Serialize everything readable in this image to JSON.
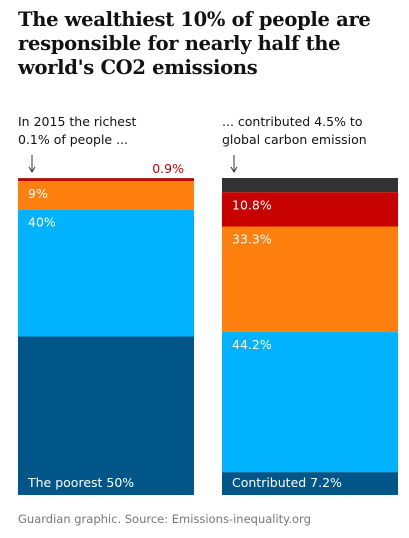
{
  "chart_data": {
    "type": "stacked-bar",
    "title": "The wealthiest 10% of people are responsible for nearly half the world's CO2 emissions",
    "source": "Guardian graphic. Source: Emissions-inequality.org",
    "bars": [
      {
        "annotation": "In 2015 the richest 0.1% of people ...",
        "values": [
          0.1,
          0.9,
          9,
          40,
          50
        ],
        "value_labels": [
          null,
          "0.9%",
          "9%",
          "40%",
          "The poorest 50%"
        ],
        "colors": [
          "#333333",
          "#c70000",
          "#ff7f0f",
          "#00b2ff",
          "#005689"
        ]
      },
      {
        "annotation": "... contributed 4.5% to global carbon emission",
        "values": [
          4.5,
          10.8,
          33.3,
          44.2,
          7.2
        ],
        "value_labels": [
          null,
          "10.8%",
          "33.3%",
          "44.2%",
          "Contributed 7.2%"
        ],
        "colors": [
          "#333333",
          "#c70000",
          "#ff7f0f",
          "#00b2ff",
          "#005689"
        ]
      }
    ]
  }
}
